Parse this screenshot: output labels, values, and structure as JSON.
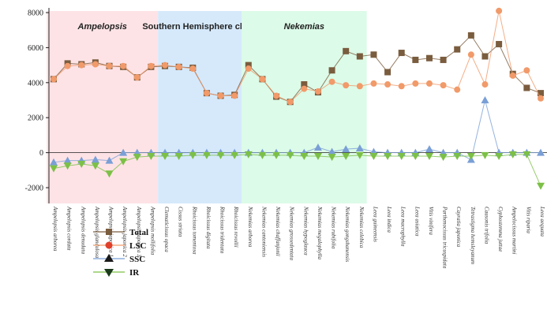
{
  "chart_data": {
    "type": "line",
    "ylim": [
      -2000,
      8000
    ],
    "yticks": [
      -2000,
      0,
      2000,
      4000,
      6000,
      8000
    ],
    "ytick_labels": [
      "-2000",
      "0",
      "2000",
      "4000",
      "6000",
      "8000"
    ],
    "regions": [
      {
        "label": "Ampelopsis",
        "italic": true,
        "from": 0,
        "to": 7,
        "color": "#fde3e6"
      },
      {
        "label": "Southern Hemisphere clade",
        "italic": false,
        "from": 8,
        "to": 13,
        "color": "#d5e9fb"
      },
      {
        "label": "Nekemias",
        "italic": true,
        "from": 14,
        "to": 22,
        "color": "#dcfbe8"
      }
    ],
    "categories": [
      "Ampelopsis arborea",
      "Ampelopsis cordata",
      "Ampelopsis denudata",
      "Ampelopsis glandulosa",
      "Ampelopsis japonica 1",
      "Ampelopsis japonica 2",
      "Ampelopsis japonica 3",
      "Ampelopsis mollifolia",
      "Clematicissus opaca",
      "Cissus striata",
      "Rhoicissus tomentosa",
      "Rhoicissus digitata",
      "Rhoicissus tridentata",
      "Rhoicissus revoilii",
      "Nekemias arborea",
      "Nekemias cantoniensis",
      "Nekemias chaffanjonii",
      "Nekemias grossedentata",
      "Nekemias hypoglauca",
      "Nekemias megalophylla",
      "Nekemias rubifolia",
      "Nekemias gongshanensis",
      "Nekemias celebica",
      "Leea guineensis",
      "Leea indica",
      "Leea macrophylla",
      "Leea asiatica",
      "Vitis vinifera",
      "Parthenocissus tricuspidata",
      "Cayratia japonica",
      "Tetrastigma hemsleyanum",
      "Causonis trifolia",
      "Cyphostemma juttae",
      "Ampelocissus martini",
      "Vitis riparia",
      "Leea aequata"
    ],
    "series": [
      {
        "name": "Total",
        "color": "#7a5c3e",
        "marker": "square",
        "values": [
          4200,
          5100,
          5050,
          5150,
          4950,
          4900,
          4300,
          4900,
          4950,
          4900,
          4850,
          3400,
          3250,
          3300,
          5000,
          4200,
          3200,
          2900,
          3900,
          3450,
          4700,
          5800,
          5500,
          5600,
          4600,
          5700,
          5300,
          5400,
          5300,
          5900,
          6700,
          5500,
          6200,
          4500,
          3700,
          3400
        ]
      },
      {
        "name": "LSC",
        "color": "#f19a6a",
        "marker": "circle",
        "values": [
          4200,
          4950,
          5000,
          5050,
          4950,
          4950,
          4300,
          4950,
          5000,
          4900,
          4800,
          3400,
          3250,
          3250,
          4800,
          4200,
          3250,
          2900,
          3650,
          3500,
          4050,
          3850,
          3800,
          3950,
          3900,
          3800,
          3950,
          3950,
          3850,
          3600,
          5600,
          3900,
          8100,
          4400,
          4700,
          3100
        ]
      },
      {
        "name": "SSC",
        "color": "#7a9fd6",
        "marker": "triangle-up",
        "values": [
          -550,
          -450,
          -450,
          -400,
          -450,
          0,
          0,
          0,
          0,
          0,
          0,
          0,
          0,
          0,
          0,
          0,
          0,
          0,
          0,
          300,
          50,
          200,
          250,
          50,
          0,
          0,
          0,
          200,
          0,
          0,
          -400,
          3000,
          0,
          0,
          0,
          0
        ]
      },
      {
        "name": "IR",
        "color": "#7cc046",
        "marker": "triangle-down",
        "values": [
          -900,
          -750,
          -650,
          -750,
          -1200,
          -500,
          -250,
          -200,
          -200,
          -200,
          -150,
          -150,
          -150,
          -150,
          -100,
          -150,
          -150,
          -150,
          -200,
          -200,
          -250,
          -200,
          -150,
          -200,
          -200,
          -200,
          -200,
          -200,
          -250,
          -200,
          -200,
          -150,
          -200,
          -100,
          -100,
          -1900
        ]
      }
    ],
    "legend": {
      "placement": "bottom-left",
      "entries": [
        "Total",
        "LSC",
        "SSC",
        "IR"
      ]
    }
  }
}
